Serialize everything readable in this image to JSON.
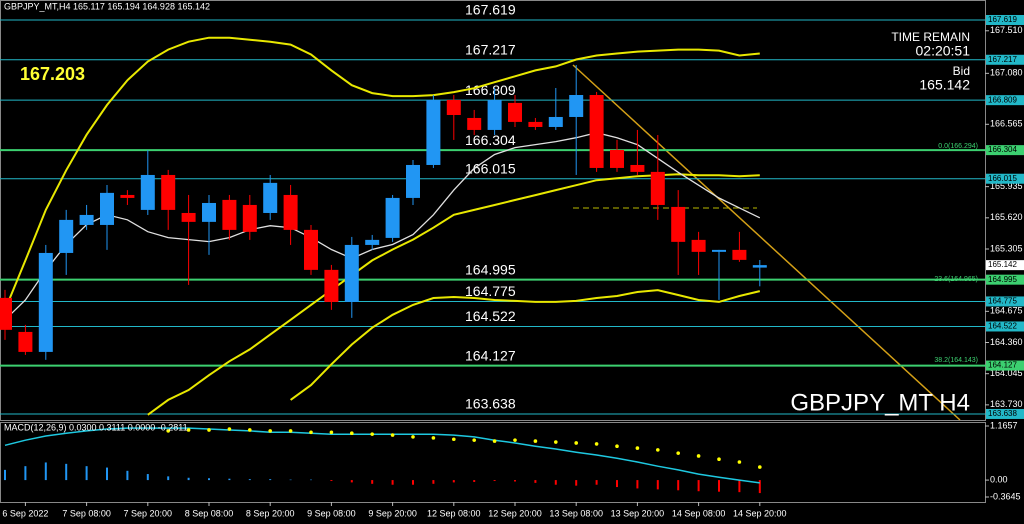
{
  "chart_data": [
    {
      "type": "candlestick",
      "title": "GBPJPY_MT,H4  165.117 165.194 164.928 165.142",
      "symbol": "GBPJPY_MT H4",
      "marker_price": "167.203",
      "time_remain_label": "TIME REMAIN",
      "time_remain": "02:20:51",
      "bid_label": "Bid",
      "fib_labels": [
        "0.0(166.294)",
        "23.6(164.965)",
        "38.2(164.143)"
      ],
      "categories": [
        null,
        "6 Sep 2022",
        null,
        null,
        "7 Sep 08:00",
        null,
        null,
        "7 Sep 20:00",
        null,
        null,
        "8 Sep 08:00",
        null,
        null,
        "8 Sep 20:00",
        null,
        null,
        "9 Sep 08:00",
        null,
        null,
        "9 Sep 20:00",
        null,
        null,
        "12 Sep 08:00",
        null,
        null,
        "12 Sep 20:00",
        null,
        null,
        "13 Sep 08:00",
        null,
        null,
        "13 Sep 20:00",
        null,
        null,
        "14 Sep 08:00",
        null,
        null,
        "14 Sep 20:00"
      ],
      "open": [
        164.811,
        164.467,
        164.265,
        165.265,
        165.548,
        165.548,
        165.851,
        165.7,
        166.053,
        165.669,
        165.579,
        165.801,
        165.75,
        165.669,
        165.851,
        165.498,
        165.094,
        164.77,
        165.346,
        165.417,
        165.821,
        166.154,
        166.811,
        166.629,
        166.508,
        166.781,
        166.589,
        166.538,
        166.639,
        166.861,
        166.306,
        166.154,
        166.084,
        165.73,
        165.397,
        165.276,
        165.296,
        165.117
      ],
      "high": [
        164.892,
        164.538,
        165.346,
        165.7,
        165.75,
        165.952,
        165.9,
        166.306,
        166.104,
        165.851,
        165.851,
        165.851,
        165.851,
        166.053,
        165.952,
        165.548,
        165.144,
        165.427,
        165.447,
        165.851,
        166.204,
        166.861,
        166.861,
        166.71,
        166.932,
        166.861,
        166.629,
        166.932,
        167.164,
        166.892,
        166.407,
        166.508,
        166.457,
        165.9,
        165.478,
        165.296,
        165.478,
        165.194
      ],
      "low": [
        164.387,
        164.235,
        164.185,
        165.043,
        165.498,
        165.296,
        165.75,
        165.649,
        165.498,
        164.942,
        165.245,
        165.397,
        165.397,
        165.599,
        165.346,
        165.043,
        164.69,
        164.609,
        165.296,
        165.377,
        165.75,
        166.124,
        166.407,
        166.457,
        166.457,
        166.538,
        166.508,
        166.508,
        166.053,
        166.084,
        166.084,
        166.053,
        165.599,
        165.043,
        165.043,
        164.791,
        165.175,
        164.928
      ],
      "close": [
        164.488,
        164.265,
        165.265,
        165.599,
        165.649,
        165.872,
        165.821,
        166.053,
        165.7,
        165.579,
        165.77,
        165.498,
        165.478,
        165.973,
        165.498,
        165.094,
        164.77,
        165.346,
        165.397,
        165.821,
        166.154,
        166.811,
        166.659,
        166.508,
        166.811,
        166.589,
        166.538,
        166.639,
        166.861,
        166.124,
        166.124,
        166.084,
        165.75,
        165.377,
        165.276,
        165.296,
        165.195,
        165.142
      ],
      "colors": {
        "up": "#2196f3",
        "down": "#ff0000"
      },
      "series": [
        {
          "color": "#e8e800",
          "values": [
            164.69,
            165.19,
            165.7,
            166.1,
            166.46,
            166.76,
            167.01,
            167.2,
            167.32,
            167.4,
            167.44,
            167.44,
            167.42,
            167.4,
            167.37,
            167.27,
            167.11,
            166.96,
            166.88,
            166.85,
            166.85,
            166.86,
            166.89,
            166.93,
            166.99,
            167.05,
            167.11,
            167.15,
            167.22,
            167.26,
            167.28,
            167.3,
            167.31,
            167.32,
            167.32,
            167.31,
            167.26,
            167.28
          ]
        },
        {
          "color": "#e8e800",
          "values": [
            null,
            null,
            null,
            null,
            null,
            null,
            null,
            163.63,
            163.78,
            163.88,
            164.03,
            164.17,
            164.29,
            164.44,
            164.59,
            164.74,
            164.89,
            165.04,
            165.19,
            165.3,
            165.4,
            165.52,
            165.65,
            165.7,
            165.75,
            165.8,
            165.85,
            165.9,
            165.95,
            166.0,
            166.02,
            166.04,
            166.05,
            166.06,
            166.05,
            166.05,
            166.04,
            166.05
          ]
        },
        {
          "color": "#e8e800",
          "values": [
            null,
            null,
            null,
            null,
            null,
            null,
            null,
            null,
            null,
            null,
            null,
            null,
            null,
            null,
            163.78,
            163.93,
            164.14,
            164.34,
            164.51,
            164.64,
            164.74,
            164.81,
            164.82,
            164.81,
            164.79,
            164.78,
            164.77,
            164.77,
            164.78,
            164.81,
            164.83,
            164.87,
            164.89,
            164.84,
            164.79,
            164.77,
            164.83,
            164.88
          ]
        },
        {
          "color": "#e0e0e0",
          "values": [
            164.59,
            164.79,
            165.09,
            165.35,
            165.55,
            165.65,
            165.6,
            165.48,
            165.42,
            165.4,
            165.38,
            165.42,
            165.5,
            165.54,
            165.52,
            165.42,
            165.3,
            165.21,
            165.3,
            165.35,
            165.45,
            165.65,
            165.9,
            166.12,
            166.26,
            166.33,
            166.36,
            166.39,
            166.43,
            166.48,
            166.43,
            166.36,
            166.22,
            166.08,
            165.95,
            165.82,
            165.72,
            165.62
          ]
        }
      ],
      "levels": [
        {
          "value": 167.619,
          "color": "#22b8c8"
        },
        {
          "value": 167.217,
          "color": "#22b8c8"
        },
        {
          "value": 166.809,
          "color": "#22b8c8"
        },
        {
          "value": 166.304,
          "color": "#3cd070"
        },
        {
          "value": 166.015,
          "color": "#22b8c8"
        },
        {
          "value": 164.995,
          "color": "#3cd070"
        },
        {
          "value": 164.775,
          "color": "#22b8c8"
        },
        {
          "value": 164.522,
          "color": "#22b8c8"
        },
        {
          "value": 164.127,
          "color": "#3cd070"
        },
        {
          "value": 163.638,
          "color": "#22b8c8"
        }
      ],
      "ylim": [
        163.577,
        167.821
      ],
      "yticks": [
        {
          "value": 167.51,
          "label": "167.510"
        },
        {
          "value": 167.08,
          "label": "167.080"
        },
        166.565,
        165.935,
        {
          "value": 165.62,
          "label": "165.620"
        },
        165.305,
        164.675,
        {
          "value": 164.36,
          "label": "164.360"
        },
        164.045,
        {
          "value": 163.73,
          "label": "163.730"
        }
      ]
    },
    {
      "type": "macd",
      "title": "MACD(12,26,9) 0.0300 0.3111 0.0000 -0.2811",
      "colors": {
        "up": "#2196f3",
        "down": "#ff0000"
      },
      "histogram": [
        0.22,
        0.3,
        0.38,
        0.35,
        0.3,
        0.27,
        0.2,
        0.13,
        0.08,
        0.05,
        0.04,
        0.03,
        0.02,
        0.02,
        0.01,
        0.01,
        -0.02,
        -0.05,
        -0.08,
        -0.1,
        -0.1,
        -0.08,
        -0.05,
        -0.04,
        -0.02,
        -0.03,
        -0.06,
        -0.1,
        -0.12,
        -0.1,
        -0.15,
        -0.18,
        -0.2,
        -0.22,
        -0.24,
        -0.25,
        -0.26,
        -0.28
      ],
      "line": {
        "color": "#1ec8e0",
        "values": [
          0.75,
          0.86,
          0.95,
          1.01,
          1.06,
          1.1,
          1.12,
          1.12,
          1.12,
          1.12,
          1.1,
          1.08,
          1.06,
          1.03,
          1.03,
          1.01,
          0.99,
          0.99,
          0.99,
          0.99,
          0.99,
          0.99,
          0.97,
          0.93,
          0.86,
          0.8,
          0.73,
          0.67,
          0.6,
          0.54,
          0.47,
          0.39,
          0.3,
          0.22,
          0.13,
          0.06,
          0.0,
          -0.06
        ]
      },
      "signal": {
        "color": "#ffff00",
        "values": [
          null,
          null,
          null,
          null,
          null,
          null,
          null,
          null,
          1.06,
          1.08,
          1.08,
          1.1,
          1.08,
          1.06,
          1.06,
          1.03,
          1.03,
          1.01,
          0.99,
          0.97,
          0.93,
          0.91,
          0.88,
          0.86,
          0.84,
          0.86,
          0.84,
          0.82,
          0.8,
          0.78,
          0.73,
          0.69,
          0.65,
          0.58,
          0.52,
          0.45,
          0.39,
          0.28
        ]
      },
      "ylim": [
        -0.3645,
        1.1657
      ],
      "yticks": [
        1.1657,
        {
          "value": 0,
          "label": "0.00"
        },
        -0.3645
      ]
    }
  ]
}
